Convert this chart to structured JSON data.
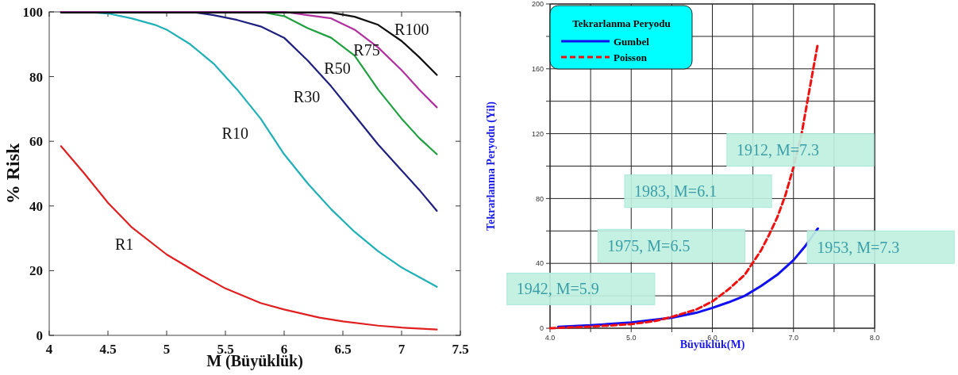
{
  "chart_data": [
    {
      "type": "line",
      "xlabel": "M (Büyüklük)",
      "ylabel": "% Risk",
      "xlim": [
        4,
        7.5
      ],
      "xticks": [
        4,
        4.5,
        5,
        5.5,
        6,
        6.5,
        7,
        7.5
      ],
      "ylim": [
        0,
        100
      ],
      "yticks": [
        0,
        20,
        40,
        60,
        80,
        100
      ],
      "line_style": "solid",
      "series": [
        {
          "name": "R1",
          "color": "#e02020",
          "x": [
            4.1,
            4.3,
            4.5,
            4.7,
            5.0,
            5.3,
            5.5,
            5.8,
            6.0,
            6.3,
            6.5,
            6.8,
            7.0,
            7.3
          ],
          "values": [
            58.5,
            50,
            41,
            33.5,
            25,
            18.5,
            14.5,
            10,
            8,
            5.5,
            4.3,
            3,
            2.4,
            1.8
          ]
        },
        {
          "name": "R10",
          "color": "#20b0b8",
          "x": [
            4.1,
            4.3,
            4.5,
            4.7,
            4.9,
            5.0,
            5.2,
            5.4,
            5.6,
            5.8,
            6.0,
            6.2,
            6.4,
            6.6,
            6.8,
            7.0,
            7.15,
            7.3
          ],
          "values": [
            100,
            100,
            99.5,
            98,
            96,
            94.5,
            90,
            84,
            76,
            67,
            56,
            47,
            39,
            32,
            26,
            21,
            18,
            15
          ]
        },
        {
          "name": "R30",
          "color": "#202080",
          "x": [
            4.1,
            5.2,
            5.4,
            5.6,
            5.8,
            6.0,
            6.2,
            6.4,
            6.6,
            6.8,
            7.0,
            7.15,
            7.3
          ],
          "values": [
            100,
            100,
            99,
            97.5,
            95.5,
            92,
            85,
            77,
            68,
            59,
            51,
            45,
            38.5
          ]
        },
        {
          "name": "R50",
          "color": "#20a040",
          "x": [
            4.1,
            5.8,
            6.0,
            6.2,
            6.4,
            6.6,
            6.8,
            7.0,
            7.15,
            7.3
          ],
          "values": [
            100,
            100,
            98.7,
            95,
            92,
            86.5,
            76,
            67,
            61,
            56
          ]
        },
        {
          "name": "R75",
          "color": "#b030a0",
          "x": [
            4.1,
            6.0,
            6.2,
            6.4,
            6.6,
            6.8,
            7.0,
            7.15,
            7.3
          ],
          "values": [
            100,
            100,
            99,
            98,
            94.5,
            89,
            82,
            76,
            70.5
          ]
        },
        {
          "name": "R100",
          "color": "#101010",
          "x": [
            4.1,
            6.4,
            6.6,
            6.8,
            7.0,
            7.15,
            7.3
          ],
          "values": [
            99.8,
            99.8,
            98.5,
            96,
            91,
            86,
            80.5
          ]
        }
      ]
    },
    {
      "type": "line",
      "xlabel": "Büyüklük(M)",
      "ylabel": "Tekrarlanma Peryodu (Yil)",
      "legend": "top left",
      "legend_title": "Tekrarlanma Peryodu",
      "grid": true,
      "xlim": [
        4,
        8
      ],
      "xticks": [
        {
          "value": 4,
          "label": "4.0"
        },
        {
          "value": 4.5,
          "label": null
        },
        {
          "value": 5,
          "label": "5.0"
        },
        {
          "value": 5.5,
          "label": null
        },
        {
          "value": 6,
          "label": "6.0"
        },
        {
          "value": 6.5,
          "label": null
        },
        {
          "value": 7,
          "label": "7.0"
        },
        {
          "value": 7.5,
          "label": null
        },
        {
          "value": 8,
          "label": "8.0"
        }
      ],
      "ylim": [
        0,
        200
      ],
      "yticks": [
        0,
        {
          "value": 20,
          "label": null
        },
        40,
        {
          "value": 60,
          "label": null
        },
        80,
        {
          "value": 100,
          "label": null
        },
        120,
        {
          "value": 140,
          "label": null
        },
        160,
        {
          "value": 180,
          "label": null
        },
        200
      ],
      "annotations": [
        "1912, M=7.3",
        "1983, M=6.1",
        "1975, M=6.5",
        "1953, M=7.3",
        "1942, M=5.9"
      ],
      "series": [
        {
          "name": "Gumbel",
          "color": "#1010f0",
          "line_style": "solid",
          "x": [
            4.1,
            4.5,
            5.0,
            5.5,
            5.8,
            6.0,
            6.2,
            6.4,
            6.6,
            6.8,
            7.0,
            7.15,
            7.3
          ],
          "values": [
            0.9,
            1.8,
            3.5,
            6.5,
            9.5,
            12.5,
            16,
            20,
            26,
            33,
            42,
            51,
            61.5
          ]
        },
        {
          "name": "Poisson",
          "color": "#f01010",
          "line_style": "dashed",
          "x": [
            4.0,
            4.5,
            5.0,
            5.3,
            5.5,
            5.8,
            6.0,
            6.2,
            6.4,
            6.5,
            6.6,
            6.7,
            6.8,
            6.9,
            7.0,
            7.1,
            7.2,
            7.3
          ],
          "values": [
            0,
            1,
            2.5,
            4.5,
            7,
            11.5,
            16.5,
            24,
            33,
            40.5,
            48,
            57.7,
            68.4,
            82,
            99.4,
            120,
            148,
            175.6
          ]
        }
      ]
    }
  ]
}
